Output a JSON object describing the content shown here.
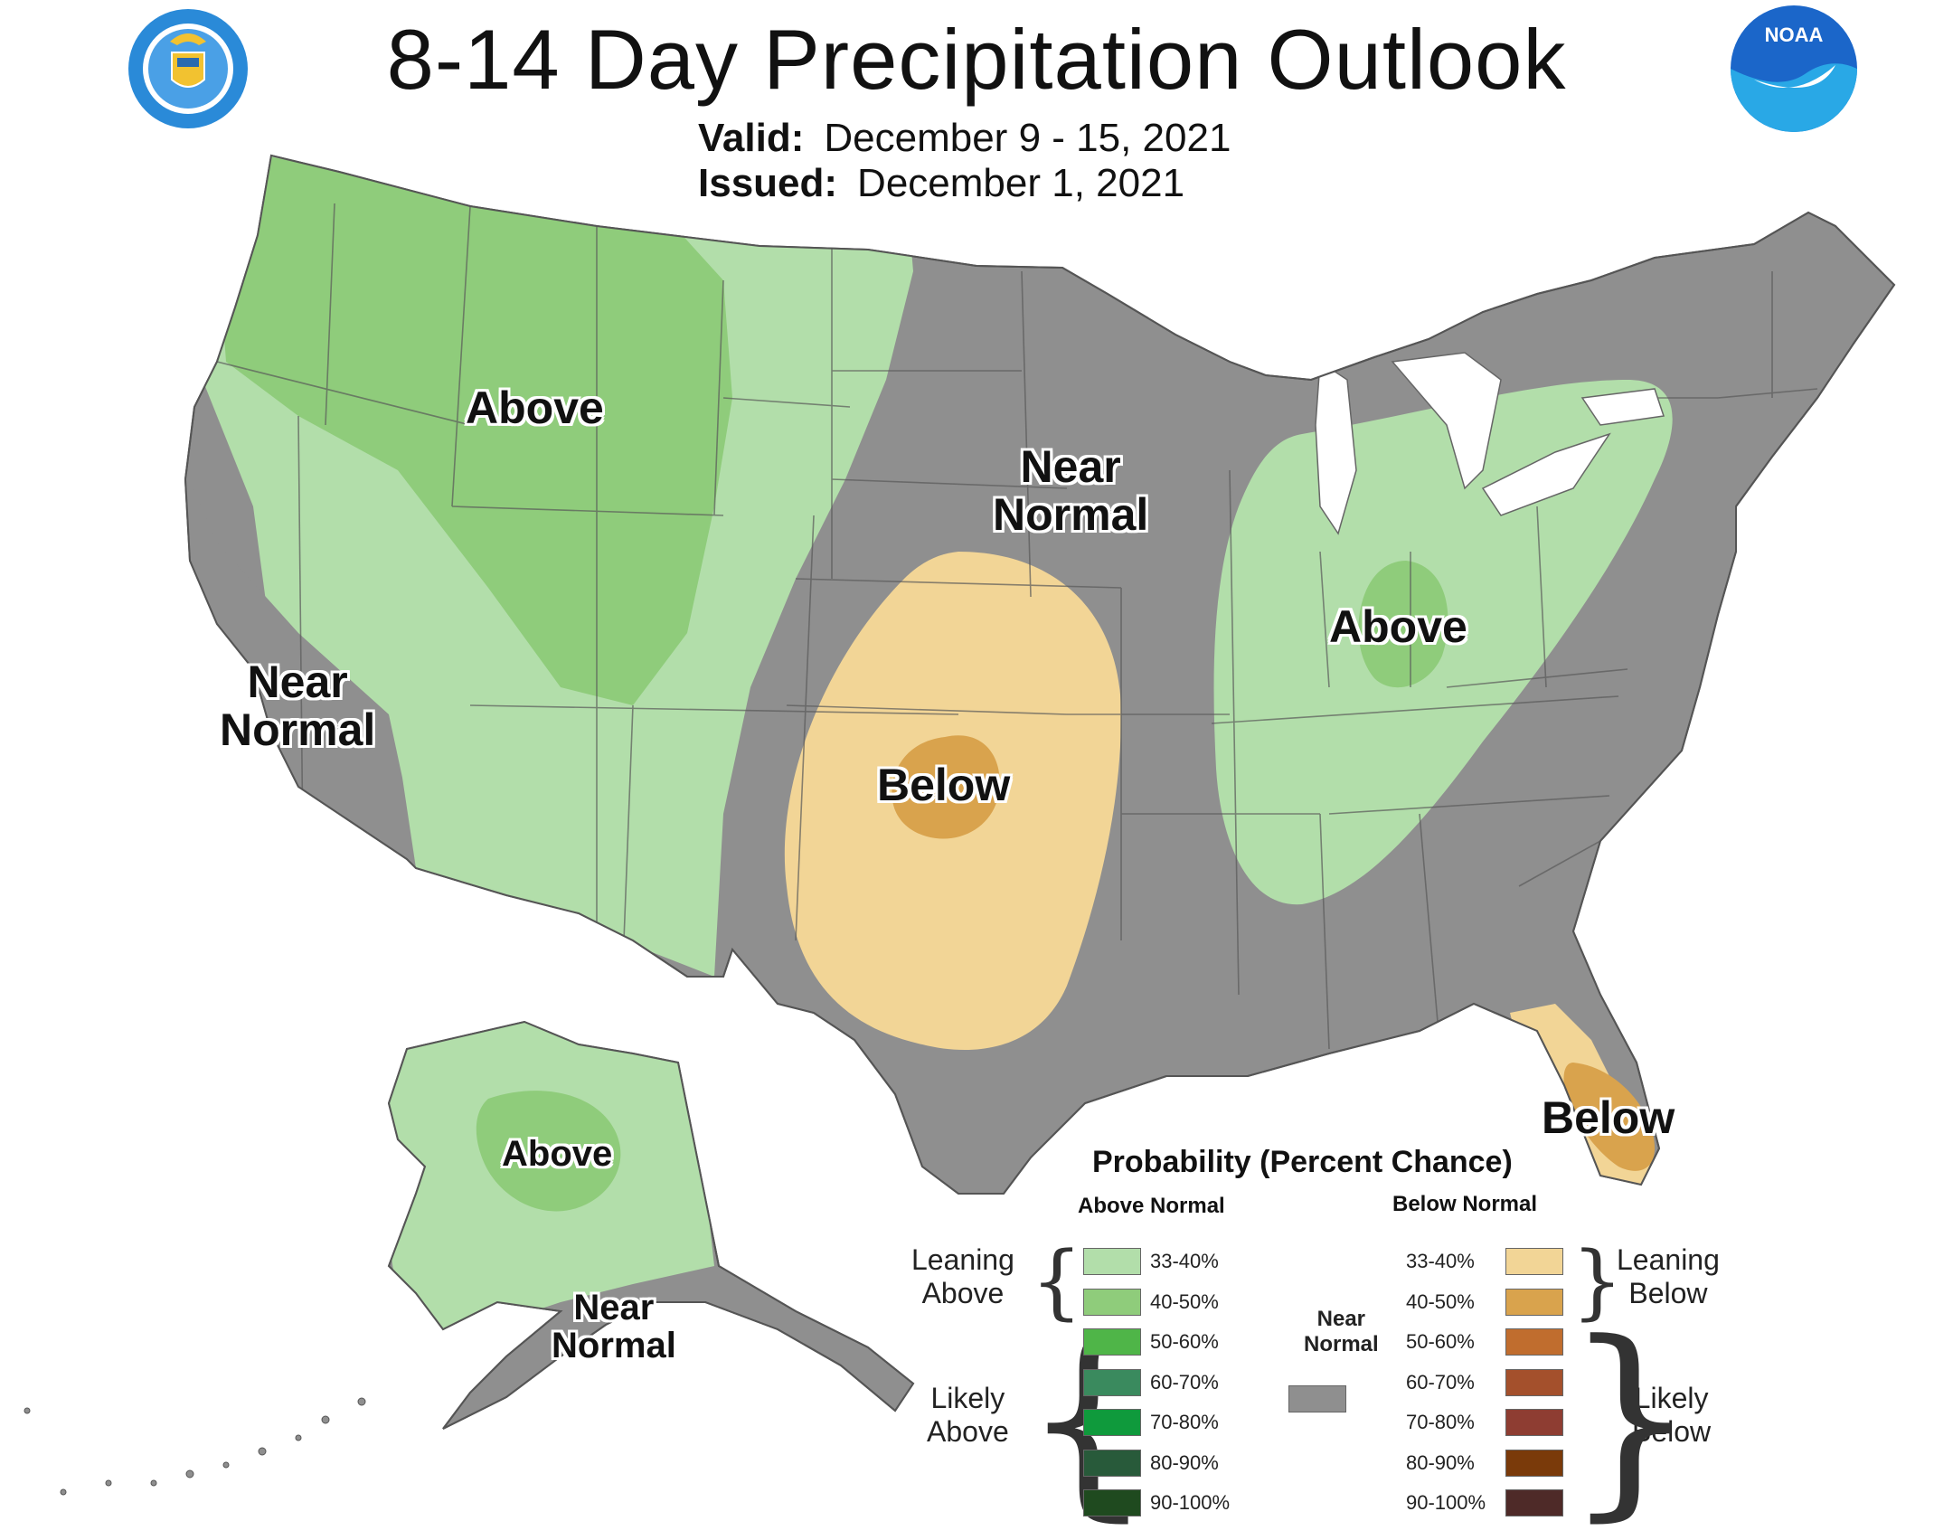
{
  "title": "8-14 Day Precipitation Outlook",
  "valid": {
    "label": "Valid:",
    "value": "December 9 - 15, 2021"
  },
  "issued": {
    "label": "Issued:",
    "value": "December 1, 2021"
  },
  "logos": {
    "left": "department-of-commerce-seal",
    "right_text": "NOAA"
  },
  "colors": {
    "near_normal": "#8f8f8f",
    "above_33_40": "#b2deaa",
    "above_40_50": "#8fcc7b",
    "below_33_40": "#f2d596",
    "below_40_50": "#d9a34d"
  },
  "map_labels": {
    "west_above": "Above",
    "central_near_normal": "Near\nNormal",
    "california_near_normal": "Near\nNormal",
    "plains_below": "Below",
    "ohio_above": "Above",
    "florida_below": "Below",
    "alaska_above": "Above",
    "alaska_near_normal": "Near\nNormal"
  },
  "legend": {
    "title": "Probability (Percent Chance)",
    "above_header": "Above Normal",
    "below_header": "Below Normal",
    "near_normal_label": "Near\nNormal",
    "leaning_above": "Leaning\nAbove",
    "likely_above": "Likely\nAbove",
    "leaning_below": "Leaning\nBelow",
    "likely_below": "Likely\nBelow",
    "above_items": [
      {
        "label": "33-40%",
        "color": "#b2deaa"
      },
      {
        "label": "40-50%",
        "color": "#8fcc7b"
      },
      {
        "label": "50-60%",
        "color": "#4fb548"
      },
      {
        "label": "60-70%",
        "color": "#3a8a5e"
      },
      {
        "label": "70-80%",
        "color": "#0f9a3c"
      },
      {
        "label": "80-90%",
        "color": "#285a3a"
      },
      {
        "label": "90-100%",
        "color": "#1f4a1f"
      }
    ],
    "below_items": [
      {
        "label": "33-40%",
        "color": "#f2d596"
      },
      {
        "label": "40-50%",
        "color": "#d9a34d"
      },
      {
        "label": "50-60%",
        "color": "#c06d2e"
      },
      {
        "label": "60-70%",
        "color": "#a4502c"
      },
      {
        "label": "70-80%",
        "color": "#8e3d32"
      },
      {
        "label": "80-90%",
        "color": "#7a3a0a"
      },
      {
        "label": "90-100%",
        "color": "#4e2a28"
      }
    ]
  }
}
